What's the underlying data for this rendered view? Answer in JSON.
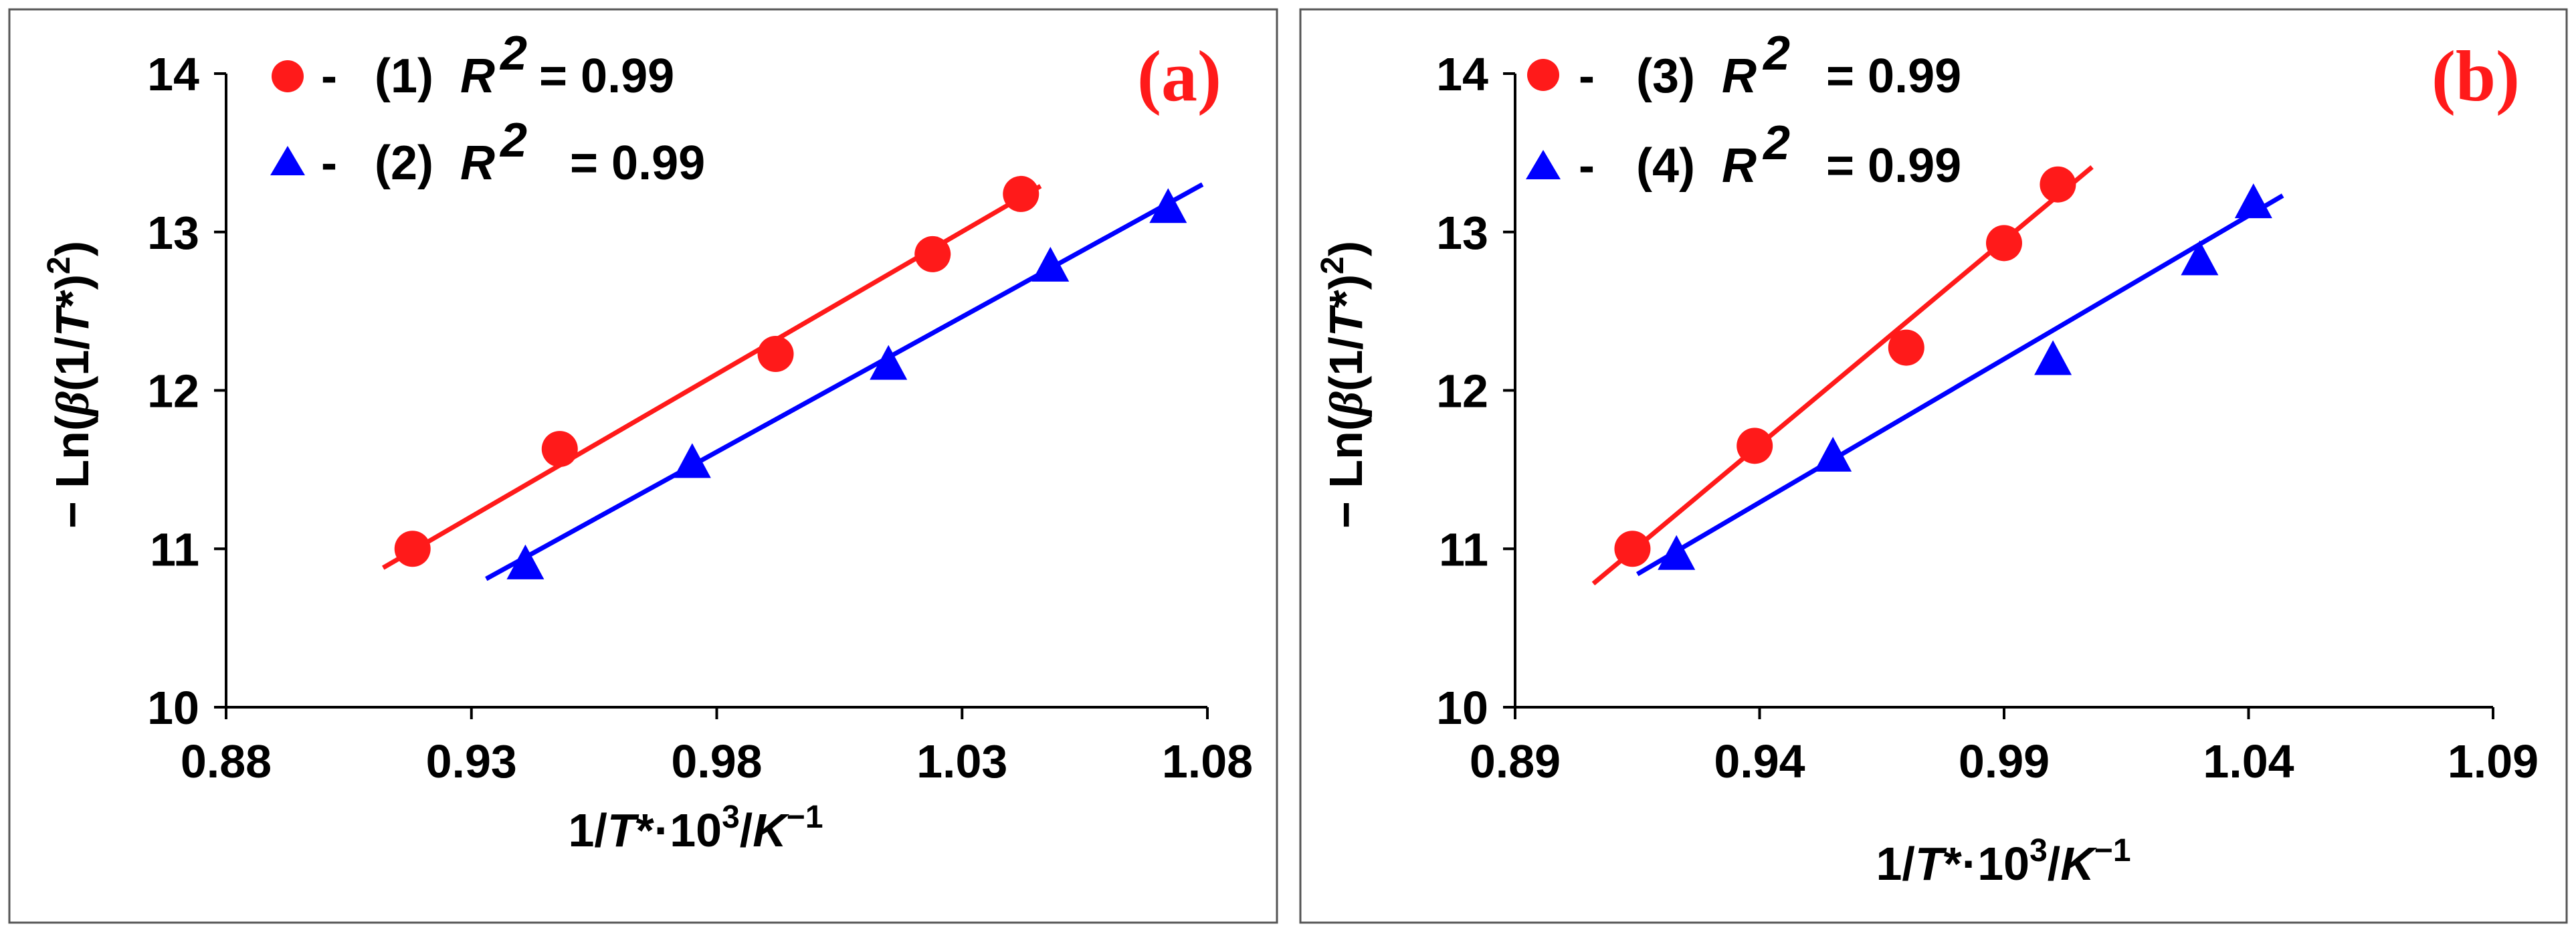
{
  "chart_data": [
    {
      "type": "scatter",
      "panel_label": "(a)",
      "xlabel": {
        "prefix": "1/",
        "T": "T",
        "star_dot": "*·10",
        "exp3": "3",
        "slash": "/",
        "K": "K",
        "expm1": "−1"
      },
      "ylabel": {
        "minus": "−",
        "ln": "Ln(",
        "beta": "β",
        "mid": "(1/",
        "T": "T",
        "star": "*)",
        "sq": "2",
        "close": ")"
      },
      "xlim": [
        0.88,
        1.08
      ],
      "ylim": [
        10,
        14
      ],
      "xticks": [
        0.88,
        0.93,
        0.98,
        1.03,
        1.08
      ],
      "xtick_labels": [
        "0.88",
        "0.93",
        "0.98",
        "1.03",
        "1.08"
      ],
      "yticks": [
        10,
        11,
        12,
        13,
        14
      ],
      "ytick_labels": [
        "10",
        "11",
        "12",
        "13",
        "14"
      ],
      "legend_position": "top-left",
      "series": [
        {
          "name": "(1)",
          "legend_dash": "-",
          "legend_id": "(1)",
          "r_label": "R",
          "r_exp": "2",
          "r_value": "= 0.99",
          "marker": "circle",
          "color": "#ff1a1a",
          "x": [
            0.918,
            0.948,
            0.992,
            1.024,
            1.042
          ],
          "y": [
            11.0,
            11.63,
            12.23,
            12.86,
            13.24
          ],
          "fit": {
            "x": [
              0.912,
              1.046
            ],
            "y": [
              10.88,
              13.29
            ]
          }
        },
        {
          "name": "(2)",
          "legend_dash": "-",
          "legend_id": "(2)",
          "r_label": "R",
          "r_exp": "2",
          "r_value": "= 0.99",
          "marker": "triangle",
          "color": "#0000ff",
          "x": [
            0.941,
            0.975,
            1.015,
            1.048,
            1.072
          ],
          "y": [
            10.9,
            11.54,
            12.16,
            12.78,
            13.15
          ],
          "fit": {
            "x": [
              0.933,
              1.079
            ],
            "y": [
              10.81,
              13.3
            ]
          }
        }
      ]
    },
    {
      "type": "scatter",
      "panel_label": "(b)",
      "xlabel": {
        "prefix": "1/",
        "T": "T",
        "star_dot": "*·10",
        "exp3": "3",
        "slash": "/",
        "K": "K",
        "expm1": "−1"
      },
      "ylabel": {
        "minus": "−",
        "ln": "Ln(",
        "beta": "β",
        "mid": "(1/",
        "T": "T",
        "star": "*)",
        "sq": "2",
        "close": ")"
      },
      "xlim": [
        0.89,
        1.09
      ],
      "ylim": [
        10,
        14
      ],
      "xticks": [
        0.89,
        0.94,
        0.99,
        1.04,
        1.09
      ],
      "xtick_labels": [
        "0.89",
        "0.94",
        "0.99",
        "1.04",
        "1.09"
      ],
      "yticks": [
        10,
        11,
        12,
        13,
        14
      ],
      "ytick_labels": [
        "10",
        "11",
        "12",
        "13",
        "14"
      ],
      "legend_position": "top-left",
      "series": [
        {
          "name": "(3)",
          "legend_dash": "-",
          "legend_id": "(3)",
          "r_label": "R",
          "r_exp": "2",
          "r_value": "= 0.99",
          "marker": "circle",
          "color": "#ff1a1a",
          "x": [
            0.914,
            0.939,
            0.97,
            0.99,
            1.001
          ],
          "y": [
            11.0,
            11.65,
            12.27,
            12.93,
            13.3
          ],
          "fit": {
            "x": [
              0.906,
              1.008
            ],
            "y": [
              10.78,
              13.41
            ]
          }
        },
        {
          "name": "(4)",
          "legend_dash": "-",
          "legend_id": "(4)",
          "r_label": "R",
          "r_exp": "2",
          "r_value": "= 0.99",
          "marker": "triangle",
          "color": "#0000ff",
          "x": [
            0.923,
            0.955,
            1.0,
            1.03,
            1.041
          ],
          "y": [
            10.96,
            11.58,
            12.19,
            12.82,
            13.18
          ],
          "fit": {
            "x": [
              0.915,
              1.047
            ],
            "y": [
              10.84,
              13.23
            ]
          }
        }
      ]
    }
  ]
}
